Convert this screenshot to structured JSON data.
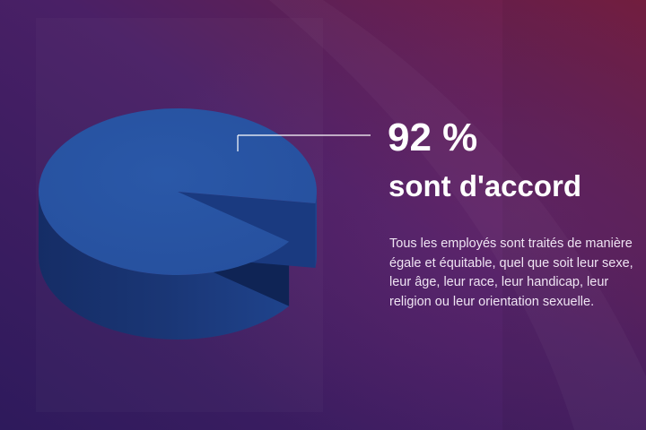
{
  "colors": {
    "background_dark": "#2e1a5c",
    "background_mid": "#5a2164",
    "background_accent": "#7a1f3f",
    "pie_top": "#26509e",
    "pie_side": "#1a3675",
    "pie_cut_side": "#0f2455",
    "text": "#ffffff"
  },
  "chart_data": {
    "type": "pie",
    "style": "3d",
    "slices": [
      {
        "label": "sont d'accord",
        "value": 92,
        "color": "#26509e"
      },
      {
        "label": "",
        "value": 8,
        "color": "none"
      }
    ]
  },
  "callout": {
    "percent": "92 %",
    "label": "sont d'accord",
    "description": "Tous les employés sont traités de manière égale et équitable, quel que soit leur sexe, leur âge, leur race, leur handicap, leur religion ou leur orientation sexuelle."
  }
}
